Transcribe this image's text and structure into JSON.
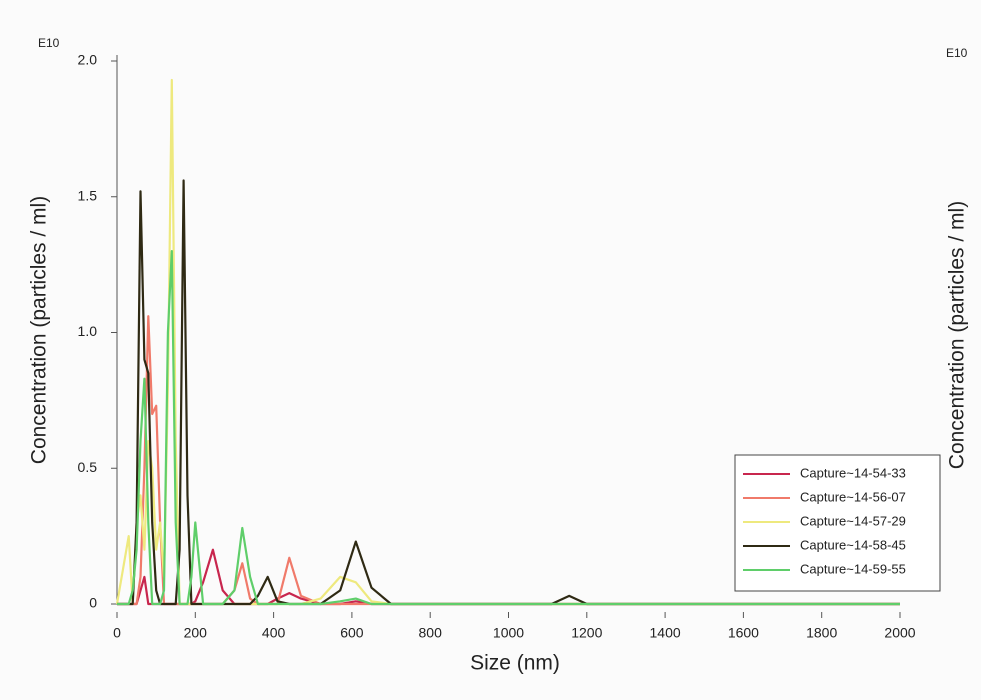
{
  "chart_data": {
    "type": "line",
    "ylabel": "Concentration (particles / ml)",
    "y_multiplier": "E10",
    "y2label": "Concentration (particles / ml)",
    "y2_multiplier": "E10",
    "xlabel": "Size (nm)",
    "x": [
      0,
      30,
      40,
      50,
      60,
      70,
      80,
      90,
      100,
      110,
      120,
      130,
      140,
      150,
      160,
      170,
      180,
      190,
      200,
      220,
      245,
      270,
      300,
      320,
      340,
      360,
      385,
      410,
      440,
      470,
      520,
      570,
      610,
      650,
      700,
      1000,
      1110,
      1155,
      1200,
      2000
    ],
    "series": [
      {
        "name": "Capture~14-54-33",
        "color": "#c8264e",
        "values": [
          0,
          0,
          0,
          0,
          0.05,
          0.1,
          0,
          0,
          0,
          0,
          0,
          0,
          0,
          0,
          0,
          0,
          0,
          0,
          0.01,
          0.08,
          0.2,
          0.05,
          0,
          0,
          0,
          0,
          0,
          0.02,
          0.04,
          0.02,
          0,
          0,
          0.01,
          0,
          0,
          0,
          0,
          0,
          0,
          0
        ]
      },
      {
        "name": "Capture~14-56-07",
        "color": "#f07a6a",
        "values": [
          0,
          0,
          0,
          0,
          0.1,
          0.5,
          1.06,
          0.7,
          0.73,
          0.3,
          0,
          0,
          0,
          0,
          0,
          0,
          0,
          0,
          0,
          0,
          0,
          0,
          0.05,
          0.15,
          0.02,
          0,
          0,
          0,
          0.17,
          0.03,
          0,
          0,
          0,
          0,
          0,
          0,
          0,
          0,
          0,
          0
        ]
      },
      {
        "name": "Capture~14-57-29",
        "color": "#eee97e",
        "values": [
          0,
          0.25,
          0,
          0.3,
          0.4,
          0.2,
          0.6,
          0.5,
          0.2,
          0.3,
          0.1,
          0.8,
          1.93,
          0.6,
          0,
          0,
          0,
          0,
          0,
          0,
          0,
          0,
          0,
          0,
          0,
          0,
          0,
          0,
          0,
          0,
          0.02,
          0.1,
          0.08,
          0.01,
          0,
          0,
          0,
          0,
          0,
          0
        ]
      },
      {
        "name": "Capture~14-58-45",
        "color": "#2f2a14",
        "values": [
          0,
          0,
          0,
          0.3,
          1.52,
          0.9,
          0.85,
          0.3,
          0.05,
          0,
          0,
          0,
          0,
          0,
          0.2,
          1.56,
          0.4,
          0,
          0,
          0,
          0,
          0,
          0,
          0,
          0,
          0.03,
          0.1,
          0.01,
          0,
          0,
          0,
          0.05,
          0.23,
          0.06,
          0,
          0,
          0,
          0.03,
          0,
          0
        ]
      },
      {
        "name": "Capture~14-59-55",
        "color": "#5fce6a",
        "values": [
          0,
          0,
          0.05,
          0.2,
          0.6,
          0.83,
          0.3,
          0,
          0,
          0,
          0.05,
          1.0,
          1.3,
          0.3,
          0,
          0,
          0,
          0.1,
          0.3,
          0,
          0,
          0,
          0.05,
          0.28,
          0.1,
          0,
          0,
          0,
          0,
          0,
          0,
          0.01,
          0.02,
          0,
          0,
          0,
          0,
          0,
          0,
          0
        ]
      }
    ],
    "xlim": [
      0,
      2000
    ],
    "xticks": [
      0,
      200,
      400,
      600,
      800,
      1000,
      1200,
      1400,
      1600,
      1800,
      2000
    ],
    "ylim": [
      0,
      2
    ],
    "yticks": [
      0,
      0.5,
      {
        "value": 1,
        "label": "1.0"
      },
      1.5,
      {
        "value": 2,
        "label": "2.0"
      }
    ],
    "legend": "lower-right"
  }
}
